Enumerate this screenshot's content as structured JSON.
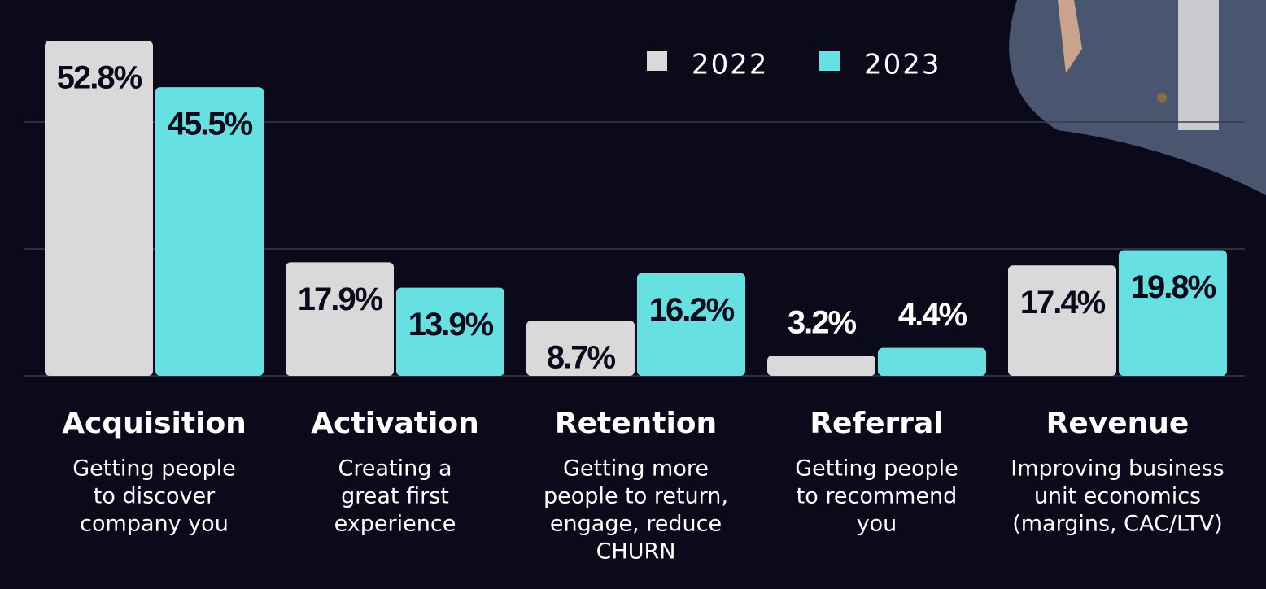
{
  "chart_data": {
    "type": "bar",
    "categories": [
      "Acquisition",
      "Activation",
      "Retention",
      "Referral",
      "Revenue"
    ],
    "descriptions": [
      [
        "Getting people",
        "to discover",
        "company you"
      ],
      [
        "Creating a",
        "great first",
        "experience"
      ],
      [
        "Getting more",
        "people to return,",
        "engage, reduce",
        "CHURN"
      ],
      [
        "Getting people",
        "to recommend",
        "you"
      ],
      [
        "Improving business",
        "unit economics",
        "(margins, CAC/LTV)"
      ]
    ],
    "series": [
      {
        "name": "2022",
        "color": "#d9d9d9",
        "values": [
          52.8,
          17.9,
          8.7,
          3.2,
          17.4
        ],
        "value_labels": [
          "52.8%",
          "17.9%",
          "8.7%",
          "3.2%",
          "17.4%"
        ]
      },
      {
        "name": "2023",
        "color": "#66e0e0",
        "values": [
          45.5,
          13.9,
          16.2,
          4.4,
          19.8
        ],
        "value_labels": [
          "45.5%",
          "13.9%",
          "16.2%",
          "4.4%",
          "19.8%"
        ]
      }
    ],
    "ylim": [
      0,
      60
    ],
    "yticks": [
      20,
      40
    ],
    "grid": true
  }
}
